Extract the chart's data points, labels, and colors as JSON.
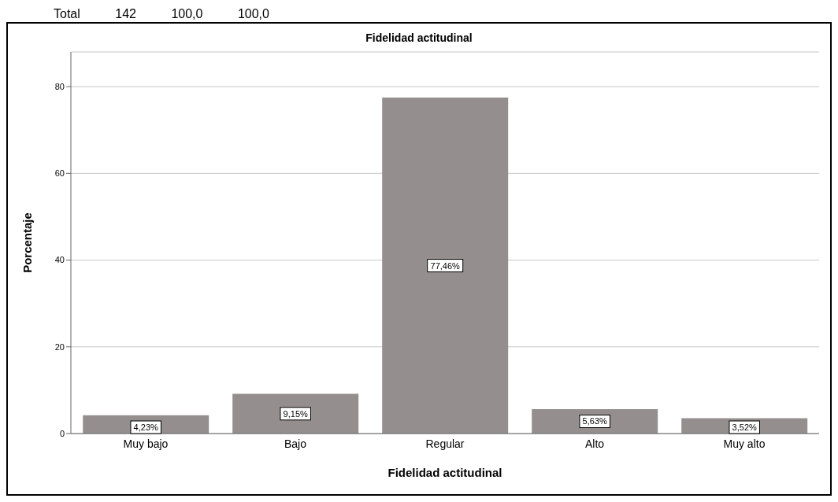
{
  "chart_data": {
    "type": "bar",
    "title": "Fidelidad actitudinal",
    "xlabel": "Fidelidad actitudinal",
    "ylabel": "Porcentaje",
    "categories": [
      "Muy bajo",
      "Bajo",
      "Regular",
      "Alto",
      "Muy alto"
    ],
    "values": [
      4.23,
      9.15,
      77.46,
      5.63,
      3.52
    ],
    "color": "#948f8e",
    "value_labels": [
      "4,23%",
      "9,15%",
      "77,46%",
      "5,63%",
      "3,52%"
    ],
    "ylim": [
      0,
      88
    ],
    "yticks": [
      0,
      20,
      40,
      60,
      80
    ],
    "grid": "y",
    "annotations": [
      "Total          142          100,0          100,0"
    ]
  }
}
